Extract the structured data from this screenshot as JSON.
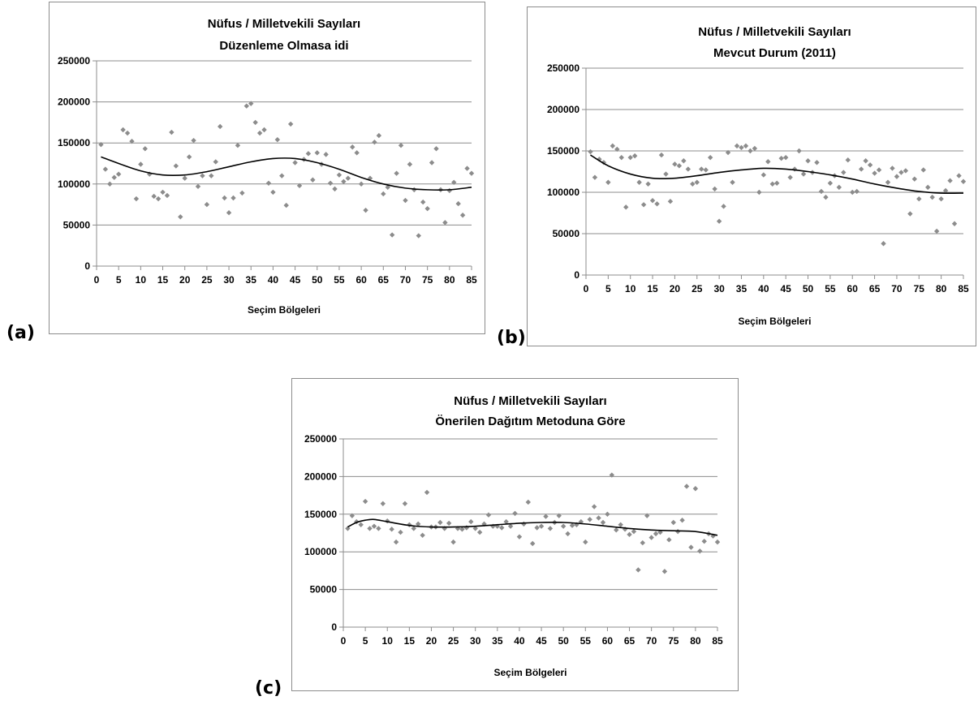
{
  "figure_labels": {
    "a": "(a)",
    "b": "(b)",
    "c": "(c)"
  },
  "colors": {
    "marker": "#8c8c8c",
    "trend": "#000000",
    "grid": "#8c8c8c",
    "axis": "#8c8c8c",
    "text": "#000000"
  },
  "chart_data": [
    {
      "type": "scatter",
      "title": "Nüfus / Milletvekili Sayıları",
      "subtitle": "Düzenleme Olmasa idi",
      "xlabel": "Seçim Bölgeleri",
      "ylabel": "",
      "xlim": [
        0,
        85
      ],
      "ylim": [
        0,
        250000
      ],
      "xticks": [
        "0",
        "5",
        "10",
        "15",
        "20",
        "25",
        "30",
        "35",
        "40",
        "45",
        "50",
        "55",
        "60",
        "65",
        "70",
        "75",
        "80",
        "85"
      ],
      "yticks": [
        "0",
        "50000",
        "100000",
        "150000",
        "200000",
        "250000"
      ],
      "grid": true,
      "legend": "none",
      "series": [
        {
          "x": [
            1,
            2,
            3,
            4,
            5,
            6,
            7,
            8,
            9,
            10,
            11,
            12,
            13,
            14,
            15,
            16,
            17,
            18,
            19,
            20,
            21,
            22,
            23,
            24,
            25,
            26,
            27,
            28,
            29,
            30,
            31,
            32,
            33,
            34,
            35,
            36,
            37,
            38,
            39,
            40,
            41,
            42,
            43,
            44,
            45,
            46,
            47,
            48,
            49,
            50,
            51,
            52,
            53,
            54,
            55,
            56,
            57,
            58,
            59,
            60,
            61,
            62,
            63,
            64,
            65,
            66,
            67,
            68,
            69,
            70,
            71,
            72,
            73,
            74,
            75,
            76,
            77,
            78,
            79,
            80,
            81,
            82,
            83,
            84,
            85
          ],
          "y": [
            148000,
            118000,
            100000,
            108000,
            112000,
            166000,
            162000,
            152000,
            82000,
            124000,
            143000,
            112000,
            85000,
            82000,
            90000,
            86000,
            163000,
            122000,
            60000,
            107000,
            133000,
            153000,
            97000,
            110000,
            75000,
            110000,
            127000,
            170000,
            83000,
            65000,
            83000,
            147000,
            89000,
            195000,
            198000,
            175000,
            162000,
            166000,
            101000,
            90000,
            154000,
            110000,
            74000,
            173000,
            126000,
            98000,
            130000,
            137000,
            105000,
            138000,
            124000,
            136000,
            101000,
            94000,
            111000,
            103000,
            107000,
            145000,
            138000,
            100000,
            68000,
            107000,
            151000,
            159000,
            88000,
            96000,
            38000,
            113000,
            147000,
            80000,
            124000,
            93000,
            37000,
            78000,
            70000,
            126000,
            143000,
            93000,
            53000,
            92000,
            102000,
            76000,
            62000,
            119000,
            113000
          ]
        }
      ],
      "trendline": {
        "type": "polynomial",
        "x": [
          1,
          5,
          10,
          15,
          20,
          25,
          30,
          35,
          40,
          45,
          50,
          55,
          60,
          65,
          70,
          75,
          80,
          85
        ],
        "y": [
          133000,
          125000,
          116000,
          111000,
          111000,
          115000,
          121000,
          127000,
          131000,
          131000,
          126000,
          118000,
          108000,
          100000,
          95000,
          93000,
          93000,
          96000
        ]
      }
    },
    {
      "type": "scatter",
      "title": "Nüfus / Milletvekili Sayıları",
      "subtitle": "Mevcut Durum (2011)",
      "xlabel": "Seçim Bölgeleri",
      "ylabel": "",
      "xlim": [
        0,
        85
      ],
      "ylim": [
        0,
        250000
      ],
      "xticks": [
        "0",
        "5",
        "10",
        "15",
        "20",
        "25",
        "30",
        "35",
        "40",
        "45",
        "50",
        "55",
        "60",
        "65",
        "70",
        "75",
        "80",
        "85"
      ],
      "yticks": [
        "0",
        "50000",
        "100000",
        "150000",
        "200000",
        "250000"
      ],
      "grid": true,
      "legend": "none",
      "series": [
        {
          "x": [
            1,
            2,
            3,
            4,
            5,
            6,
            7,
            8,
            9,
            10,
            11,
            12,
            13,
            14,
            15,
            16,
            17,
            18,
            19,
            20,
            21,
            22,
            23,
            24,
            25,
            26,
            27,
            28,
            29,
            30,
            31,
            32,
            33,
            34,
            35,
            36,
            37,
            38,
            39,
            40,
            41,
            42,
            43,
            44,
            45,
            46,
            47,
            48,
            49,
            50,
            51,
            52,
            53,
            54,
            55,
            56,
            57,
            58,
            59,
            60,
            61,
            62,
            63,
            64,
            65,
            66,
            67,
            68,
            69,
            70,
            71,
            72,
            73,
            74,
            75,
            76,
            77,
            78,
            79,
            80,
            81,
            82,
            83,
            84,
            85
          ],
          "y": [
            149000,
            118000,
            140000,
            136000,
            112000,
            156000,
            152000,
            142000,
            82000,
            142000,
            144000,
            112000,
            85000,
            110000,
            90000,
            86000,
            145000,
            122000,
            89000,
            134000,
            132000,
            138000,
            128000,
            110000,
            112000,
            128000,
            127000,
            142000,
            104000,
            65000,
            83000,
            148000,
            112000,
            156000,
            154000,
            156000,
            150000,
            153000,
            100000,
            121000,
            137000,
            110000,
            111000,
            141000,
            142000,
            118000,
            128000,
            150000,
            122000,
            138000,
            124000,
            136000,
            101000,
            94000,
            111000,
            120000,
            106000,
            124000,
            139000,
            100000,
            101000,
            128000,
            138000,
            133000,
            123000,
            127000,
            38000,
            112000,
            129000,
            119000,
            124000,
            126000,
            74000,
            116000,
            92000,
            127000,
            106000,
            94000,
            53000,
            92000,
            102000,
            114000,
            62000,
            120000,
            113000
          ]
        }
      ],
      "trendline": {
        "type": "polynomial",
        "x": [
          1,
          5,
          10,
          15,
          20,
          25,
          30,
          35,
          40,
          45,
          50,
          55,
          60,
          65,
          70,
          75,
          80,
          85
        ],
        "y": [
          145000,
          132000,
          122000,
          117000,
          117000,
          120000,
          124000,
          127000,
          129000,
          128000,
          125000,
          121000,
          116000,
          110000,
          105000,
          101000,
          99000,
          99000
        ]
      }
    },
    {
      "type": "scatter",
      "title": "Nüfus / Milletvekili Sayıları",
      "subtitle": "Önerilen Dağıtım Metoduna Göre",
      "xlabel": "Seçim Bölgeleri",
      "ylabel": "",
      "xlim": [
        0,
        85
      ],
      "ylim": [
        0,
        250000
      ],
      "xticks": [
        "0",
        "5",
        "10",
        "15",
        "20",
        "25",
        "30",
        "35",
        "40",
        "45",
        "50",
        "55",
        "60",
        "65",
        "70",
        "75",
        "80",
        "85"
      ],
      "yticks": [
        "0",
        "50000",
        "100000",
        "150000",
        "200000",
        "250000"
      ],
      "grid": true,
      "legend": "none",
      "series": [
        {
          "x": [
            1,
            2,
            3,
            4,
            5,
            6,
            7,
            8,
            9,
            10,
            11,
            12,
            13,
            14,
            15,
            16,
            17,
            18,
            19,
            20,
            21,
            22,
            23,
            24,
            25,
            26,
            27,
            28,
            29,
            30,
            31,
            32,
            33,
            34,
            35,
            36,
            37,
            38,
            39,
            40,
            41,
            42,
            43,
            44,
            45,
            46,
            47,
            48,
            49,
            50,
            51,
            52,
            53,
            54,
            55,
            56,
            57,
            58,
            59,
            60,
            61,
            62,
            63,
            64,
            65,
            66,
            67,
            68,
            69,
            70,
            71,
            72,
            73,
            74,
            75,
            76,
            77,
            78,
            79,
            80,
            81,
            82,
            83,
            84,
            85
          ],
          "y": [
            131000,
            148000,
            140000,
            136000,
            167000,
            131000,
            134000,
            131000,
            164000,
            141000,
            130000,
            113000,
            126000,
            164000,
            136000,
            131000,
            137000,
            122000,
            179000,
            133000,
            133000,
            139000,
            131000,
            138000,
            113000,
            131000,
            130000,
            132000,
            140000,
            131000,
            126000,
            137000,
            149000,
            134000,
            134000,
            132000,
            140000,
            134000,
            151000,
            120000,
            137000,
            166000,
            111000,
            132000,
            134000,
            147000,
            131000,
            139000,
            148000,
            134000,
            124000,
            135000,
            136000,
            140000,
            113000,
            143000,
            160000,
            145000,
            139000,
            150000,
            202000,
            129000,
            136000,
            130000,
            123000,
            127000,
            76000,
            112000,
            148000,
            119000,
            124000,
            126000,
            74000,
            116000,
            139000,
            127000,
            142000,
            187000,
            106000,
            184000,
            101000,
            114000,
            124000,
            121000,
            113000
          ]
        }
      ],
      "trendline": {
        "type": "polynomial",
        "x": [
          1,
          3,
          5,
          7,
          10,
          15,
          20,
          25,
          30,
          35,
          40,
          45,
          50,
          55,
          60,
          65,
          70,
          75,
          80,
          85
        ],
        "y": [
          133000,
          139000,
          142000,
          143000,
          140000,
          135000,
          133000,
          133000,
          134000,
          136000,
          138000,
          139000,
          139000,
          137000,
          134000,
          131000,
          129000,
          128000,
          127000,
          122000
        ]
      }
    }
  ]
}
